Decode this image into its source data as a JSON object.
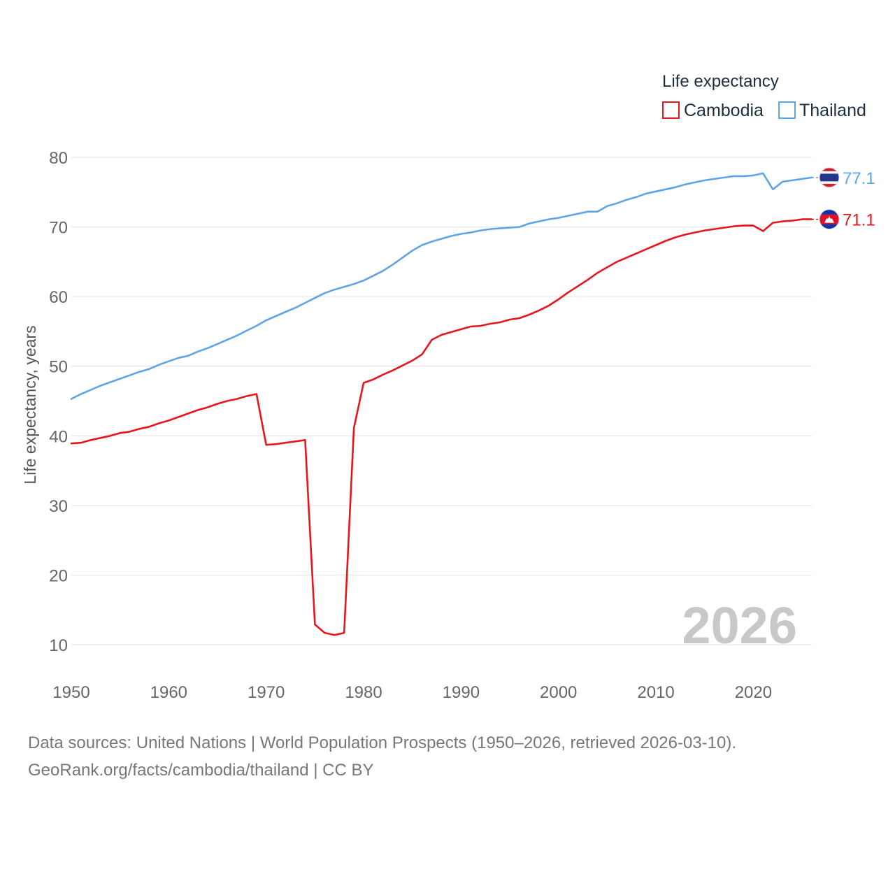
{
  "legend": {
    "title": "Life expectancy",
    "items": [
      {
        "name": "Cambodia",
        "color": "#e8161c"
      },
      {
        "name": "Thailand",
        "color": "#5ea5e6"
      }
    ]
  },
  "year_watermark": "2026",
  "source": {
    "line1": "Data sources: United Nations | World Population Prospects (1950–2026, retrieved 2026-03-10).",
    "line2": "GeoRank.org/facts/cambodia/thailand | CC BY"
  },
  "chart_data": {
    "type": "line",
    "title": "Life expectancy",
    "xlabel": "",
    "ylabel": "Life expectancy, years",
    "xlim": [
      1950,
      2026
    ],
    "ylim": [
      10,
      80
    ],
    "x_ticks": [
      1950,
      1960,
      1970,
      1980,
      1990,
      2000,
      2010,
      2020
    ],
    "y_ticks": [
      10,
      20,
      30,
      40,
      50,
      60,
      70,
      80
    ],
    "grid": true,
    "legend_position": "top-right",
    "x": [
      1950,
      1951,
      1952,
      1953,
      1954,
      1955,
      1956,
      1957,
      1958,
      1959,
      1960,
      1961,
      1962,
      1963,
      1964,
      1965,
      1966,
      1967,
      1968,
      1969,
      1970,
      1971,
      1972,
      1973,
      1974,
      1975,
      1976,
      1977,
      1978,
      1979,
      1980,
      1981,
      1982,
      1983,
      1984,
      1985,
      1986,
      1987,
      1988,
      1989,
      1990,
      1991,
      1992,
      1993,
      1994,
      1995,
      1996,
      1997,
      1998,
      1999,
      2000,
      2001,
      2002,
      2003,
      2004,
      2005,
      2006,
      2007,
      2008,
      2009,
      2010,
      2011,
      2012,
      2013,
      2014,
      2015,
      2016,
      2017,
      2018,
      2019,
      2020,
      2021,
      2022,
      2023,
      2024,
      2025,
      2026
    ],
    "series": [
      {
        "name": "Cambodia",
        "color": "#e8161c",
        "end_label": "71.1",
        "flag": "cambodia-flag",
        "values": [
          38.9,
          39.0,
          39.4,
          39.7,
          40.0,
          40.4,
          40.6,
          41.0,
          41.3,
          41.8,
          42.2,
          42.7,
          43.2,
          43.7,
          44.1,
          44.6,
          45.0,
          45.3,
          45.7,
          46.0,
          38.7,
          38.8,
          39.0,
          39.2,
          39.4,
          12.9,
          11.7,
          11.4,
          11.7,
          41.1,
          47.6,
          48.1,
          48.8,
          49.4,
          50.1,
          50.8,
          51.7,
          53.8,
          54.5,
          54.9,
          55.3,
          55.7,
          55.8,
          56.1,
          56.3,
          56.7,
          56.9,
          57.4,
          58.0,
          58.7,
          59.6,
          60.6,
          61.5,
          62.4,
          63.4,
          64.2,
          65.0,
          65.6,
          66.2,
          66.8,
          67.4,
          68.0,
          68.5,
          68.9,
          69.2,
          69.5,
          69.7,
          69.9,
          70.1,
          70.2,
          70.2,
          69.4,
          70.6,
          70.8,
          70.9,
          71.1,
          71.1
        ]
      },
      {
        "name": "Thailand",
        "color": "#5ea5e6",
        "end_label": "77.1",
        "flag": "thailand-flag",
        "values": [
          45.3,
          46.0,
          46.6,
          47.2,
          47.7,
          48.2,
          48.7,
          49.2,
          49.6,
          50.2,
          50.7,
          51.2,
          51.5,
          52.1,
          52.6,
          53.2,
          53.8,
          54.4,
          55.1,
          55.8,
          56.6,
          57.2,
          57.8,
          58.4,
          59.1,
          59.8,
          60.5,
          61.0,
          61.4,
          61.8,
          62.3,
          63.0,
          63.7,
          64.6,
          65.6,
          66.6,
          67.4,
          67.9,
          68.3,
          68.7,
          69.0,
          69.2,
          69.5,
          69.7,
          69.8,
          69.9,
          70.0,
          70.5,
          70.8,
          71.1,
          71.3,
          71.6,
          71.9,
          72.2,
          72.2,
          73.0,
          73.4,
          73.9,
          74.3,
          74.8,
          75.1,
          75.4,
          75.7,
          76.1,
          76.4,
          76.7,
          76.9,
          77.1,
          77.3,
          77.3,
          77.4,
          77.7,
          75.4,
          76.5,
          76.7,
          76.9,
          77.1
        ]
      }
    ]
  }
}
